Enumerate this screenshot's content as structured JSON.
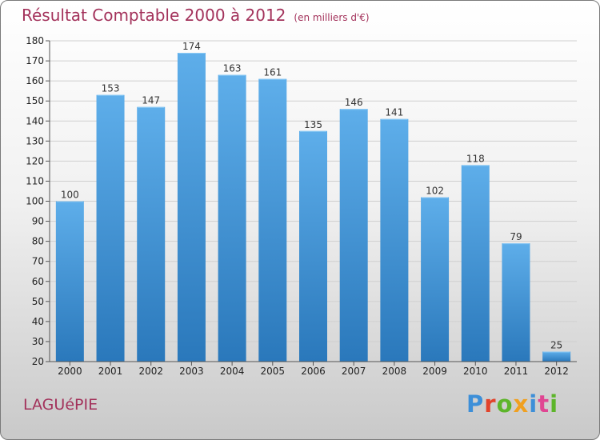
{
  "header": {
    "title": "Résultat Comptable 2000 à 2012",
    "unit_note": "(en milliers d'€)"
  },
  "footer": {
    "commune": "LAGUéPIE",
    "brand": "Proxiti",
    "brand_colors": [
      "#3d8fd8",
      "#e2432b",
      "#5db52a",
      "#f0a020",
      "#3d8fd8",
      "#e04592",
      "#5db52a"
    ]
  },
  "colors": {
    "bar_top": "#5eaeea",
    "bar_bottom": "#2a78bb",
    "grid": "#cfcfcf"
  },
  "chart_data": {
    "type": "bar",
    "categories": [
      "2000",
      "2001",
      "2002",
      "2003",
      "2004",
      "2005",
      "2006",
      "2007",
      "2008",
      "2009",
      "2010",
      "2011",
      "2012"
    ],
    "values": [
      100,
      153,
      147,
      174,
      163,
      161,
      135,
      146,
      141,
      102,
      118,
      79,
      25
    ],
    "ylim": [
      20,
      180
    ],
    "yticks": [
      20,
      30,
      40,
      50,
      60,
      70,
      80,
      90,
      100,
      110,
      120,
      130,
      140,
      150,
      160,
      170,
      180
    ],
    "grid": true
  }
}
